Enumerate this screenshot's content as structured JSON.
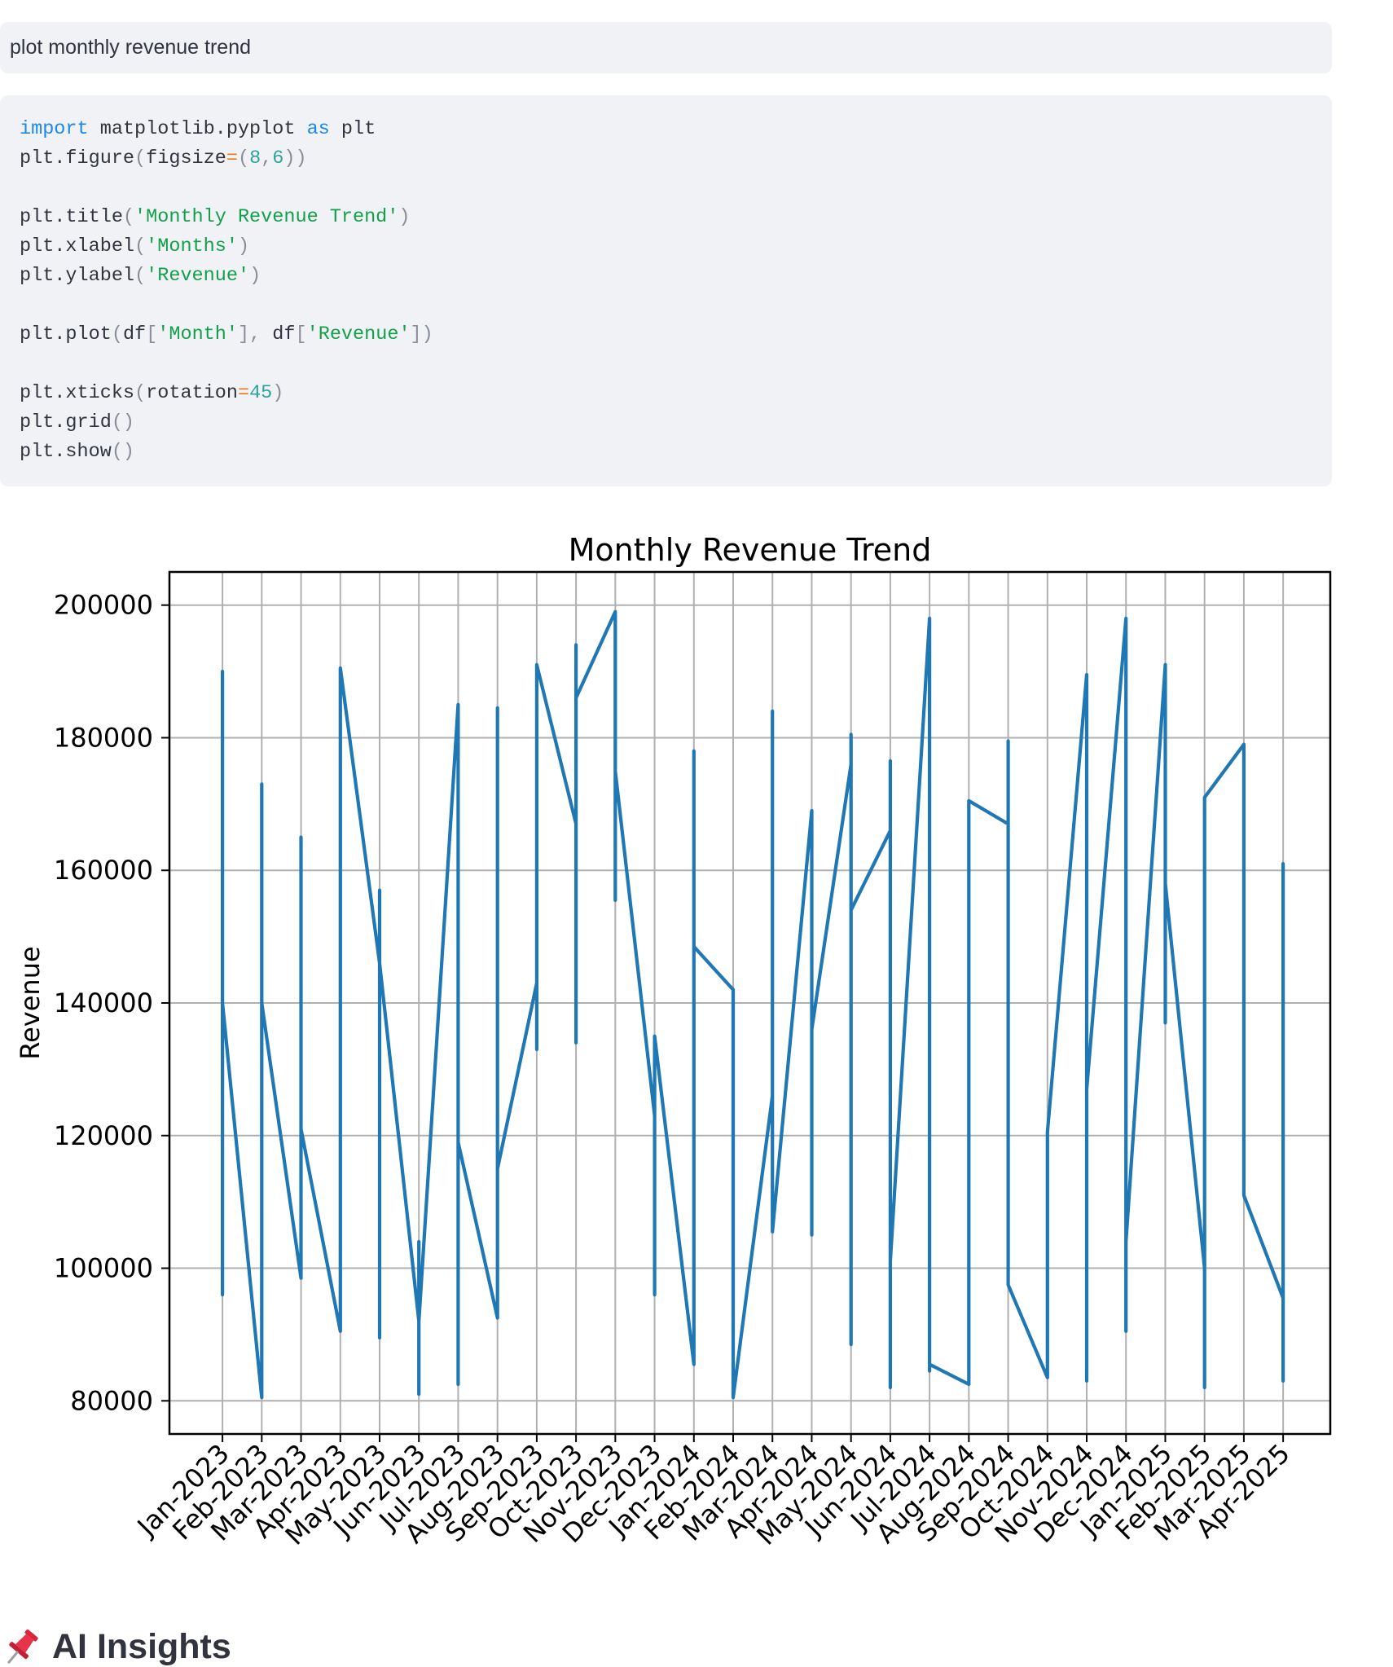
{
  "query": {
    "text": "plot monthly revenue trend"
  },
  "code": {
    "lines": [
      [
        {
          "t": "import",
          "c": "kw"
        },
        {
          "t": " matplotlib.pyplot "
        },
        {
          "t": "as",
          "c": "kw"
        },
        {
          "t": " plt"
        }
      ],
      [
        {
          "t": "plt.figure"
        },
        {
          "t": "(",
          "c": "pun"
        },
        {
          "t": "figsize"
        },
        {
          "t": "=",
          "c": "op"
        },
        {
          "t": "(",
          "c": "pun"
        },
        {
          "t": "8",
          "c": "num"
        },
        {
          "t": ",",
          "c": "pun"
        },
        {
          "t": "6",
          "c": "num"
        },
        {
          "t": "))",
          "c": "pun"
        }
      ],
      [],
      [
        {
          "t": "plt.title"
        },
        {
          "t": "(",
          "c": "pun"
        },
        {
          "t": "'Monthly Revenue Trend'",
          "c": "str"
        },
        {
          "t": ")",
          "c": "pun"
        }
      ],
      [
        {
          "t": "plt.xlabel"
        },
        {
          "t": "(",
          "c": "pun"
        },
        {
          "t": "'Months'",
          "c": "str"
        },
        {
          "t": ")",
          "c": "pun"
        }
      ],
      [
        {
          "t": "plt.ylabel"
        },
        {
          "t": "(",
          "c": "pun"
        },
        {
          "t": "'Revenue'",
          "c": "str"
        },
        {
          "t": ")",
          "c": "pun"
        }
      ],
      [],
      [
        {
          "t": "plt.plot"
        },
        {
          "t": "(",
          "c": "pun"
        },
        {
          "t": "df"
        },
        {
          "t": "[",
          "c": "pun"
        },
        {
          "t": "'Month'",
          "c": "str"
        },
        {
          "t": "], ",
          "c": "pun"
        },
        {
          "t": "df"
        },
        {
          "t": "[",
          "c": "pun"
        },
        {
          "t": "'Revenue'",
          "c": "str"
        },
        {
          "t": "])",
          "c": "pun"
        }
      ],
      [],
      [
        {
          "t": "plt.xticks"
        },
        {
          "t": "(",
          "c": "pun"
        },
        {
          "t": "rotation"
        },
        {
          "t": "=",
          "c": "op"
        },
        {
          "t": "45",
          "c": "num"
        },
        {
          "t": ")",
          "c": "pun"
        }
      ],
      [
        {
          "t": "plt.grid"
        },
        {
          "t": "()",
          "c": "pun"
        }
      ],
      [
        {
          "t": "plt.show"
        },
        {
          "t": "()",
          "c": "pun"
        }
      ]
    ]
  },
  "chart_data": {
    "type": "line",
    "title": "Monthly Revenue Trend",
    "xlabel": "Months",
    "ylabel": "Revenue",
    "ylim": [
      75000,
      205000
    ],
    "yticks": [
      80000,
      100000,
      120000,
      140000,
      160000,
      180000,
      200000
    ],
    "categories": [
      "Jan-2023",
      "Feb-2023",
      "Mar-2023",
      "Apr-2023",
      "May-2023",
      "Jun-2023",
      "Jul-2023",
      "Aug-2023",
      "Sep-2023",
      "Oct-2023",
      "Nov-2023",
      "Dec-2023",
      "Jan-2024",
      "Feb-2024",
      "Mar-2024",
      "Apr-2024",
      "May-2024",
      "Jun-2024",
      "Jul-2024",
      "Aug-2024",
      "Sep-2024",
      "Oct-2024",
      "Nov-2024",
      "Dec-2024",
      "Jan-2025",
      "Feb-2025",
      "Mar-2025",
      "Apr-2025"
    ],
    "x_range": [
      -1.35,
      28.2
    ],
    "grid": true,
    "line_color": "#1f77b4",
    "series": [
      {
        "name": "Revenue",
        "points": [
          [
            0,
            190000
          ],
          [
            0,
            96000
          ],
          [
            0,
            140000
          ],
          [
            1,
            80500
          ],
          [
            1,
            173000
          ],
          [
            1,
            140000
          ],
          [
            2,
            98500
          ],
          [
            2,
            165000
          ],
          [
            2,
            121000
          ],
          [
            3,
            90500
          ],
          [
            3,
            190500
          ],
          [
            4,
            146000
          ],
          [
            4,
            157000
          ],
          [
            4,
            89500
          ],
          [
            4,
            146000
          ],
          [
            5,
            92000
          ],
          [
            5,
            81000
          ],
          [
            5,
            104000
          ],
          [
            5,
            92000
          ],
          [
            6,
            185000
          ],
          [
            6,
            82500
          ],
          [
            6,
            119000
          ],
          [
            7,
            92500
          ],
          [
            7,
            184500
          ],
          [
            7,
            115000
          ],
          [
            8,
            143000
          ],
          [
            8,
            133000
          ],
          [
            8,
            191000
          ],
          [
            9,
            167000
          ],
          [
            9,
            134000
          ],
          [
            9,
            194000
          ],
          [
            9,
            186000
          ],
          [
            10,
            199000
          ],
          [
            10,
            155500
          ],
          [
            10,
            175000
          ],
          [
            11,
            123000
          ],
          [
            11,
            96000
          ],
          [
            11,
            135000
          ],
          [
            12,
            85500
          ],
          [
            12,
            178000
          ],
          [
            12,
            148500
          ],
          [
            13,
            142000
          ],
          [
            13,
            80500
          ],
          [
            14,
            126000
          ],
          [
            14,
            184000
          ],
          [
            14,
            105500
          ],
          [
            15,
            169000
          ],
          [
            15,
            105000
          ],
          [
            15,
            136000
          ],
          [
            16,
            176000
          ],
          [
            16,
            88500
          ],
          [
            16,
            180500
          ],
          [
            16,
            154000
          ],
          [
            17,
            166000
          ],
          [
            17,
            82000
          ],
          [
            17,
            176500
          ],
          [
            17,
            101000
          ],
          [
            18,
            198000
          ],
          [
            18,
            84500
          ],
          [
            18,
            85500
          ],
          [
            19,
            82500
          ],
          [
            19,
            148500
          ],
          [
            19,
            170500
          ],
          [
            20,
            167000
          ],
          [
            20,
            179500
          ],
          [
            20,
            97500
          ],
          [
            21,
            83500
          ],
          [
            21,
            120500
          ],
          [
            22,
            189500
          ],
          [
            22,
            83000
          ],
          [
            22,
            127000
          ],
          [
            23,
            198000
          ],
          [
            23,
            90500
          ],
          [
            23,
            104000
          ],
          [
            24,
            191000
          ],
          [
            24,
            137000
          ],
          [
            24,
            158000
          ],
          [
            25,
            100000
          ],
          [
            25,
            82000
          ],
          [
            25,
            171000
          ],
          [
            26,
            179000
          ],
          [
            26,
            111000
          ],
          [
            27,
            95500
          ],
          [
            27,
            83000
          ],
          [
            27,
            161000
          ]
        ]
      }
    ]
  },
  "insights": {
    "heading": "AI Insights",
    "icon": "pushpin-icon"
  }
}
